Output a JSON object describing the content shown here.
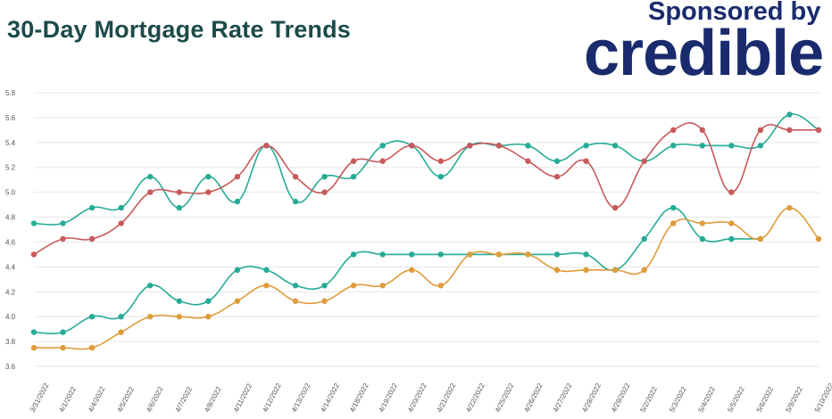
{
  "header": {
    "title": "30-Day Mortgage Rate Trends",
    "sponsor_label": "Sponsored by",
    "brand": "credible"
  },
  "colors": {
    "title": "#1c4a4a",
    "brand": "#1a2b6d",
    "teal": "#26ab96",
    "red": "#c85a5a",
    "orange": "#e09b3b"
  },
  "chart_data": {
    "type": "line",
    "title": "30-Day Mortgage Rate Trends",
    "xlabel": "",
    "ylabel": "",
    "ylim": [
      3.6,
      5.8
    ],
    "yticks": [
      "3.6",
      "3.8",
      "4.0",
      "4.2",
      "4.4",
      "4.6",
      "4.8",
      "5.0",
      "5.2",
      "5.4",
      "5.6",
      "5.8"
    ],
    "grid": true,
    "legend": "none",
    "categories": [
      "3/31/2022",
      "4/1/2022",
      "4/4/2022",
      "4/5/2022",
      "4/6/2022",
      "4/7/2022",
      "4/8/2022",
      "4/11/2022",
      "4/12/2022",
      "4/13/2022",
      "4/14/2022",
      "4/18/2022",
      "4/19/2022",
      "4/20/2022",
      "4/21/2022",
      "4/22/2022",
      "4/25/2022",
      "4/26/2022",
      "4/27/2022",
      "4/28/2022",
      "4/29/2022",
      "5/2/2022",
      "5/3/2022",
      "5/4/2022",
      "5/5/2022",
      "5/6/2022",
      "5/9/2022",
      "5/10/2022"
    ],
    "series": [
      {
        "color": "#26ab96",
        "values": [
          4.75,
          4.75,
          4.875,
          4.875,
          5.125,
          4.875,
          5.125,
          4.925,
          5.375,
          4.925,
          5.125,
          5.125,
          5.375,
          5.375,
          5.125,
          5.375,
          5.375,
          5.375,
          5.25,
          5.375,
          5.375,
          5.25,
          5.375,
          5.375,
          5.375,
          5.375,
          5.625,
          5.5
        ]
      },
      {
        "color": "#c85a5a",
        "values": [
          4.5,
          4.625,
          4.625,
          4.75,
          5.0,
          5.0,
          5.0,
          5.125,
          5.375,
          5.125,
          5.0,
          5.25,
          5.25,
          5.375,
          5.25,
          5.375,
          5.375,
          5.25,
          5.125,
          5.25,
          4.875,
          5.25,
          5.5,
          5.5,
          5.0,
          5.5,
          5.5,
          5.5
        ]
      },
      {
        "color": "#26ab96",
        "values": [
          3.875,
          3.875,
          4.0,
          4.0,
          4.25,
          4.125,
          4.125,
          4.375,
          4.375,
          4.25,
          4.25,
          4.5,
          4.5,
          4.5,
          4.5,
          4.5,
          4.5,
          4.5,
          4.5,
          4.5,
          4.375,
          4.625,
          4.875,
          4.625,
          4.625,
          4.625,
          null,
          null
        ]
      },
      {
        "color": "#e09b3b",
        "values": [
          3.75,
          3.75,
          3.75,
          3.875,
          4.0,
          4.0,
          4.0,
          4.125,
          4.25,
          4.125,
          4.125,
          4.25,
          4.25,
          4.375,
          4.25,
          4.5,
          4.5,
          4.5,
          4.375,
          4.375,
          4.375,
          4.375,
          4.75,
          4.75,
          4.75,
          4.625,
          4.875,
          4.625
        ]
      }
    ]
  }
}
